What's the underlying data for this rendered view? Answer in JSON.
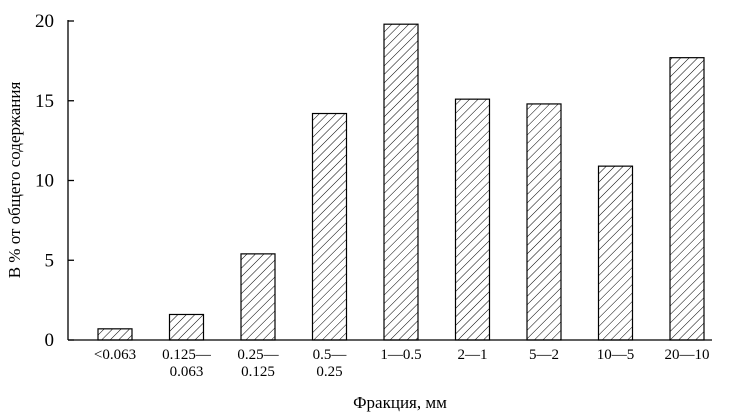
{
  "chart_data": {
    "type": "bar",
    "y_label": "В % от общего содержания",
    "x_label": "Фракция, мм",
    "categories": [
      [
        "<0.063"
      ],
      [
        "0.125—",
        "0.063"
      ],
      [
        "0.25—",
        "0.125"
      ],
      [
        "0.5—",
        "0.25"
      ],
      [
        "1—0.5"
      ],
      [
        "2—1"
      ],
      [
        "5—2"
      ],
      [
        "10—5"
      ],
      [
        "20—10"
      ]
    ],
    "values": [
      0.7,
      1.6,
      5.4,
      14.2,
      19.8,
      15.1,
      14.8,
      10.9,
      17.7
    ],
    "color": "#000000",
    "ylim": [
      0,
      20
    ],
    "yticks": [
      0,
      5,
      10,
      15,
      20
    ],
    "grid": false
  }
}
